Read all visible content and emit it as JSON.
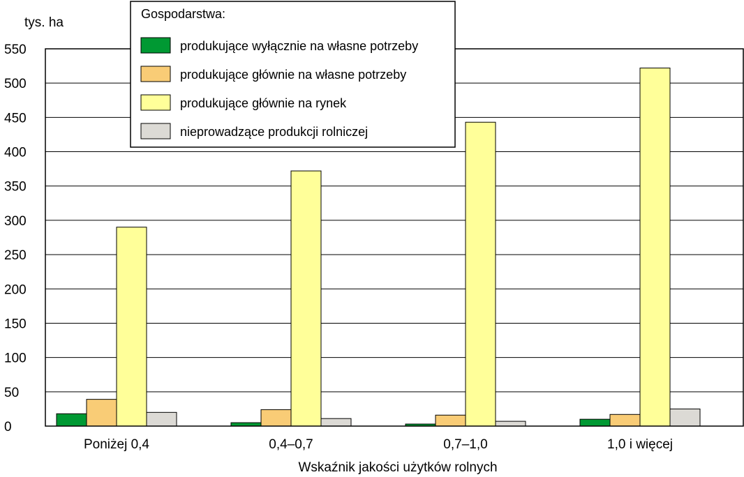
{
  "chart_data": {
    "type": "bar",
    "ylabel": "tys. ha",
    "xlabel": "Wskaźnik  jakości  użytków  rolnych",
    "categories": [
      "Poniżej 0,4",
      "0,4–0,7",
      "0,7–1,0",
      "1,0 i więcej"
    ],
    "ylim": [
      0,
      550
    ],
    "yticks": [
      0,
      50,
      100,
      150,
      200,
      250,
      300,
      350,
      400,
      450,
      500,
      550
    ],
    "grid": true,
    "legend": {
      "title": "Gospodarstwa:",
      "placement": "top-left"
    },
    "series": [
      {
        "name": "produkujące wyłącznie na własne potrzeby",
        "color": "#009933",
        "values": [
          18,
          5,
          3,
          10
        ]
      },
      {
        "name": "produkujące głównie na własne potrzeby",
        "color": "#f9cc76",
        "values": [
          39,
          24,
          16,
          17
        ]
      },
      {
        "name": "produkujące głównie na rynek",
        "color": "#ffff99",
        "values": [
          290,
          372,
          443,
          522
        ]
      },
      {
        "name": "nieprowadzące produkcji rolniczej",
        "color": "#dcdad5",
        "values": [
          20,
          11,
          7,
          25
        ]
      }
    ]
  }
}
